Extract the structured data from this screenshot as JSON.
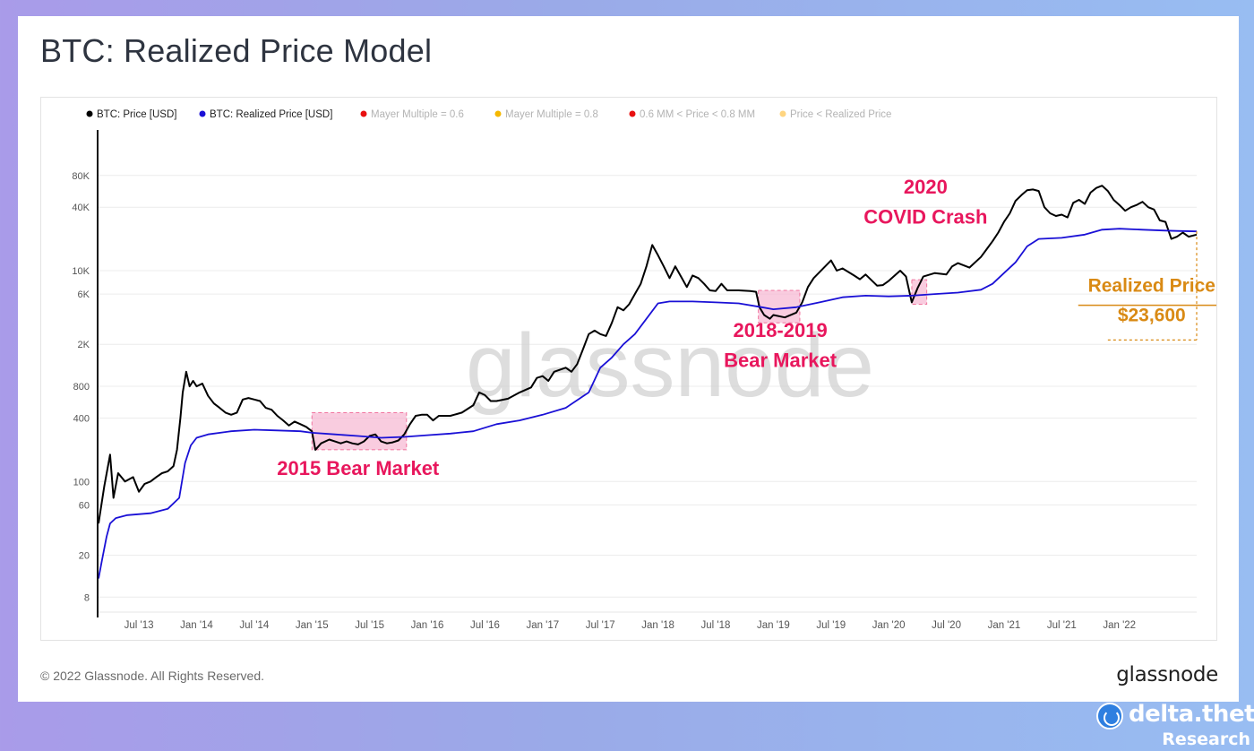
{
  "header": {
    "title": "BTC: Realized Price Model"
  },
  "footer": {
    "copyright": "© 2022 Glassnode. All Rights Reserved.",
    "brand": "glassnode"
  },
  "watermark": "glassnode",
  "badge": {
    "name": "delta.theta",
    "sub": "Research"
  },
  "colors": {
    "price": "#000000",
    "realized": "#1a10d6",
    "annotation": "#e8175d",
    "realized_callout": "#d98a14",
    "mm06": "#e81010",
    "mm08": "#f5b800",
    "band": "#e81010",
    "below_realized": "#ffd580",
    "highlight_fill": "#f7b7d2"
  },
  "chart_data": {
    "type": "line",
    "title": "BTC: Realized Price Model",
    "y_scale": "log",
    "ylim": [
      6,
      200000
    ],
    "y_ticks": [
      {
        "value": 8,
        "label": "8"
      },
      {
        "value": 20,
        "label": "20"
      },
      {
        "value": 60,
        "label": "60"
      },
      {
        "value": 100,
        "label": "100"
      },
      {
        "value": 400,
        "label": "400"
      },
      {
        "value": 800,
        "label": "800"
      },
      {
        "value": 2000,
        "label": "2K"
      },
      {
        "value": 6000,
        "label": "6K"
      },
      {
        "value": 10000,
        "label": "10K"
      },
      {
        "value": 40000,
        "label": "40K"
      },
      {
        "value": 80000,
        "label": "80K"
      }
    ],
    "xlim": [
      2013.15,
      2022.67
    ],
    "x_ticks": [
      {
        "value": 2013.5,
        "label": "Jul '13"
      },
      {
        "value": 2014.0,
        "label": "Jan '14"
      },
      {
        "value": 2014.5,
        "label": "Jul '14"
      },
      {
        "value": 2015.0,
        "label": "Jan '15"
      },
      {
        "value": 2015.5,
        "label": "Jul '15"
      },
      {
        "value": 2016.0,
        "label": "Jan '16"
      },
      {
        "value": 2016.5,
        "label": "Jul '16"
      },
      {
        "value": 2017.0,
        "label": "Jan '17"
      },
      {
        "value": 2017.5,
        "label": "Jul '17"
      },
      {
        "value": 2018.0,
        "label": "Jan '18"
      },
      {
        "value": 2018.5,
        "label": "Jul '18"
      },
      {
        "value": 2019.0,
        "label": "Jan '19"
      },
      {
        "value": 2019.5,
        "label": "Jul '19"
      },
      {
        "value": 2020.0,
        "label": "Jan '20"
      },
      {
        "value": 2020.5,
        "label": "Jul '20"
      },
      {
        "value": 2021.0,
        "label": "Jan '21"
      },
      {
        "value": 2021.5,
        "label": "Jul '21"
      },
      {
        "value": 2022.0,
        "label": "Jan '22"
      }
    ],
    "legend": [
      {
        "label": "BTC: Price [USD]",
        "color": "#000000",
        "active": true
      },
      {
        "label": "BTC: Realized Price [USD]",
        "color": "#1a10d6",
        "active": true
      },
      {
        "label": "Mayer Multiple = 0.6",
        "color": "#e81010",
        "active": false
      },
      {
        "label": "Mayer Multiple = 0.8",
        "color": "#f5b800",
        "active": false
      },
      {
        "label": "0.6 MM < Price < 0.8 MM",
        "color": "#e81010",
        "active": false
      },
      {
        "label": "Price < Realized Price",
        "color": "#ffd580",
        "active": false
      }
    ],
    "series": [
      {
        "name": "BTC: Price [USD]",
        "color": "#000000",
        "points": [
          [
            2013.15,
            40
          ],
          [
            2013.2,
            90
          ],
          [
            2013.25,
            180
          ],
          [
            2013.28,
            70
          ],
          [
            2013.32,
            120
          ],
          [
            2013.38,
            100
          ],
          [
            2013.45,
            110
          ],
          [
            2013.5,
            80
          ],
          [
            2013.55,
            95
          ],
          [
            2013.6,
            100
          ],
          [
            2013.65,
            110
          ],
          [
            2013.7,
            120
          ],
          [
            2013.75,
            125
          ],
          [
            2013.8,
            140
          ],
          [
            2013.83,
            200
          ],
          [
            2013.86,
            400
          ],
          [
            2013.88,
            700
          ],
          [
            2013.91,
            1100
          ],
          [
            2013.94,
            800
          ],
          [
            2013.97,
            900
          ],
          [
            2014.0,
            800
          ],
          [
            2014.05,
            850
          ],
          [
            2014.1,
            650
          ],
          [
            2014.15,
            550
          ],
          [
            2014.2,
            500
          ],
          [
            2014.25,
            450
          ],
          [
            2014.3,
            430
          ],
          [
            2014.35,
            450
          ],
          [
            2014.4,
            600
          ],
          [
            2014.45,
            620
          ],
          [
            2014.5,
            600
          ],
          [
            2014.55,
            580
          ],
          [
            2014.6,
            500
          ],
          [
            2014.65,
            480
          ],
          [
            2014.7,
            420
          ],
          [
            2014.75,
            380
          ],
          [
            2014.8,
            340
          ],
          [
            2014.85,
            370
          ],
          [
            2014.9,
            350
          ],
          [
            2014.95,
            330
          ],
          [
            2015.0,
            300
          ],
          [
            2015.03,
            200
          ],
          [
            2015.08,
            230
          ],
          [
            2015.15,
            250
          ],
          [
            2015.2,
            240
          ],
          [
            2015.25,
            230
          ],
          [
            2015.3,
            240
          ],
          [
            2015.35,
            230
          ],
          [
            2015.4,
            225
          ],
          [
            2015.45,
            240
          ],
          [
            2015.5,
            270
          ],
          [
            2015.55,
            280
          ],
          [
            2015.6,
            240
          ],
          [
            2015.65,
            230
          ],
          [
            2015.7,
            235
          ],
          [
            2015.75,
            245
          ],
          [
            2015.8,
            280
          ],
          [
            2015.85,
            350
          ],
          [
            2015.9,
            420
          ],
          [
            2015.95,
            430
          ],
          [
            2016.0,
            430
          ],
          [
            2016.05,
            380
          ],
          [
            2016.1,
            420
          ],
          [
            2016.2,
            420
          ],
          [
            2016.3,
            450
          ],
          [
            2016.4,
            530
          ],
          [
            2016.45,
            700
          ],
          [
            2016.5,
            660
          ],
          [
            2016.55,
            580
          ],
          [
            2016.6,
            580
          ],
          [
            2016.7,
            610
          ],
          [
            2016.8,
            700
          ],
          [
            2016.9,
            780
          ],
          [
            2016.95,
            960
          ],
          [
            2017.0,
            1000
          ],
          [
            2017.05,
            900
          ],
          [
            2017.1,
            1100
          ],
          [
            2017.2,
            1200
          ],
          [
            2017.25,
            1100
          ],
          [
            2017.3,
            1300
          ],
          [
            2017.35,
            1800
          ],
          [
            2017.4,
            2500
          ],
          [
            2017.45,
            2700
          ],
          [
            2017.5,
            2500
          ],
          [
            2017.55,
            2400
          ],
          [
            2017.6,
            3200
          ],
          [
            2017.65,
            4500
          ],
          [
            2017.7,
            4200
          ],
          [
            2017.75,
            4800
          ],
          [
            2017.8,
            6000
          ],
          [
            2017.85,
            7500
          ],
          [
            2017.9,
            11000
          ],
          [
            2017.95,
            17500
          ],
          [
            2018.0,
            14000
          ],
          [
            2018.05,
            11000
          ],
          [
            2018.1,
            8500
          ],
          [
            2018.15,
            11000
          ],
          [
            2018.2,
            8800
          ],
          [
            2018.25,
            7000
          ],
          [
            2018.3,
            9000
          ],
          [
            2018.35,
            8500
          ],
          [
            2018.4,
            7500
          ],
          [
            2018.45,
            6500
          ],
          [
            2018.5,
            6400
          ],
          [
            2018.55,
            7500
          ],
          [
            2018.6,
            6500
          ],
          [
            2018.7,
            6500
          ],
          [
            2018.8,
            6400
          ],
          [
            2018.85,
            6300
          ],
          [
            2018.88,
            4500
          ],
          [
            2018.92,
            3800
          ],
          [
            2018.97,
            3500
          ],
          [
            2019.0,
            3800
          ],
          [
            2019.1,
            3600
          ],
          [
            2019.2,
            4000
          ],
          [
            2019.25,
            5000
          ],
          [
            2019.3,
            7000
          ],
          [
            2019.35,
            8500
          ],
          [
            2019.45,
            11000
          ],
          [
            2019.5,
            12500
          ],
          [
            2019.55,
            10000
          ],
          [
            2019.6,
            10500
          ],
          [
            2019.7,
            9000
          ],
          [
            2019.75,
            8300
          ],
          [
            2019.8,
            9200
          ],
          [
            2019.9,
            7200
          ],
          [
            2019.95,
            7300
          ],
          [
            2020.0,
            8000
          ],
          [
            2020.1,
            10000
          ],
          [
            2020.15,
            8800
          ],
          [
            2020.2,
            5000
          ],
          [
            2020.25,
            6800
          ],
          [
            2020.3,
            8800
          ],
          [
            2020.4,
            9500
          ],
          [
            2020.5,
            9200
          ],
          [
            2020.55,
            11000
          ],
          [
            2020.6,
            11800
          ],
          [
            2020.7,
            10700
          ],
          [
            2020.8,
            13500
          ],
          [
            2020.85,
            16000
          ],
          [
            2020.9,
            19000
          ],
          [
            2020.95,
            23000
          ],
          [
            2021.0,
            29000
          ],
          [
            2021.05,
            35000
          ],
          [
            2021.1,
            46000
          ],
          [
            2021.15,
            52000
          ],
          [
            2021.2,
            58000
          ],
          [
            2021.25,
            59000
          ],
          [
            2021.3,
            57000
          ],
          [
            2021.35,
            40000
          ],
          [
            2021.4,
            35000
          ],
          [
            2021.45,
            33000
          ],
          [
            2021.5,
            34000
          ],
          [
            2021.55,
            32000
          ],
          [
            2021.6,
            44000
          ],
          [
            2021.65,
            47000
          ],
          [
            2021.7,
            43000
          ],
          [
            2021.75,
            55000
          ],
          [
            2021.8,
            61000
          ],
          [
            2021.85,
            64000
          ],
          [
            2021.9,
            57000
          ],
          [
            2021.95,
            47000
          ],
          [
            2022.0,
            42000
          ],
          [
            2022.05,
            37000
          ],
          [
            2022.1,
            40000
          ],
          [
            2022.15,
            42000
          ],
          [
            2022.2,
            45000
          ],
          [
            2022.25,
            40000
          ],
          [
            2022.3,
            38000
          ],
          [
            2022.35,
            30000
          ],
          [
            2022.4,
            29000
          ],
          [
            2022.45,
            20000
          ],
          [
            2022.5,
            21000
          ],
          [
            2022.55,
            23000
          ],
          [
            2022.6,
            21000
          ],
          [
            2022.67,
            22000
          ]
        ]
      },
      {
        "name": "BTC: Realized Price [USD]",
        "color": "#1a10d6",
        "points": [
          [
            2013.15,
            12
          ],
          [
            2013.18,
            18
          ],
          [
            2013.22,
            30
          ],
          [
            2013.25,
            40
          ],
          [
            2013.3,
            45
          ],
          [
            2013.4,
            48
          ],
          [
            2013.6,
            50
          ],
          [
            2013.75,
            55
          ],
          [
            2013.85,
            70
          ],
          [
            2013.9,
            150
          ],
          [
            2013.95,
            220
          ],
          [
            2014.0,
            260
          ],
          [
            2014.1,
            280
          ],
          [
            2014.3,
            300
          ],
          [
            2014.5,
            310
          ],
          [
            2014.7,
            305
          ],
          [
            2014.9,
            300
          ],
          [
            2015.0,
            290
          ],
          [
            2015.2,
            280
          ],
          [
            2015.4,
            270
          ],
          [
            2015.6,
            260
          ],
          [
            2015.8,
            265
          ],
          [
            2016.0,
            275
          ],
          [
            2016.2,
            285
          ],
          [
            2016.4,
            300
          ],
          [
            2016.6,
            350
          ],
          [
            2016.8,
            380
          ],
          [
            2017.0,
            430
          ],
          [
            2017.2,
            500
          ],
          [
            2017.4,
            700
          ],
          [
            2017.5,
            1200
          ],
          [
            2017.6,
            1500
          ],
          [
            2017.7,
            2000
          ],
          [
            2017.8,
            2500
          ],
          [
            2017.9,
            3500
          ],
          [
            2018.0,
            4900
          ],
          [
            2018.1,
            5100
          ],
          [
            2018.3,
            5100
          ],
          [
            2018.5,
            5000
          ],
          [
            2018.7,
            4900
          ],
          [
            2018.9,
            4500
          ],
          [
            2019.0,
            4300
          ],
          [
            2019.2,
            4500
          ],
          [
            2019.4,
            5000
          ],
          [
            2019.6,
            5600
          ],
          [
            2019.8,
            5800
          ],
          [
            2020.0,
            5700
          ],
          [
            2020.2,
            5800
          ],
          [
            2020.4,
            6000
          ],
          [
            2020.6,
            6200
          ],
          [
            2020.8,
            6600
          ],
          [
            2020.9,
            7500
          ],
          [
            2021.0,
            9500
          ],
          [
            2021.1,
            12000
          ],
          [
            2021.2,
            17000
          ],
          [
            2021.3,
            20000
          ],
          [
            2021.5,
            20500
          ],
          [
            2021.7,
            22000
          ],
          [
            2021.85,
            24500
          ],
          [
            2022.0,
            25000
          ],
          [
            2022.2,
            24500
          ],
          [
            2022.4,
            24000
          ],
          [
            2022.5,
            23800
          ],
          [
            2022.67,
            23600
          ]
        ]
      }
    ],
    "highlights": [
      {
        "label": "2015 Bear Market",
        "x0": 2015.0,
        "x1": 2015.82,
        "y0": 200,
        "y1": 450
      },
      {
        "label": "2018-2019 Bear Market",
        "x0": 2018.87,
        "x1": 2019.23,
        "y0": 3200,
        "y1": 6500
      },
      {
        "label": "2020 COVID Crash",
        "x0": 2020.2,
        "x1": 2020.33,
        "y0": 4800,
        "y1": 8200
      }
    ],
    "annotations": [
      {
        "text": "2015 Bear Market",
        "x": 2015.4,
        "y": 115
      },
      {
        "text": "2018-2019",
        "x": 2019.06,
        "y": 2350
      },
      {
        "text": "Bear Market",
        "x": 2019.06,
        "y": 1220
      },
      {
        "text": "2020",
        "x": 2020.32,
        "y": 54000
      },
      {
        "text": "COVID Crash",
        "x": 2020.32,
        "y": 28000
      }
    ],
    "realized_callout": {
      "label": "Realized Price",
      "value": "$23,600",
      "x0": 2021.9,
      "x1": 2022.67,
      "y_bottom": 2200,
      "label_x": 2022.28,
      "label_y": 6300,
      "value_x": 2022.28,
      "value_y": 3300,
      "underline_y": 4700
    }
  }
}
